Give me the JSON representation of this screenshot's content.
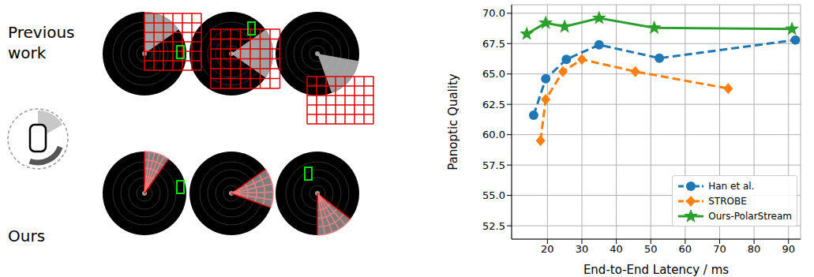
{
  "chart_data": {
    "type": "line",
    "xlabel": "End-to-End Latency / ms",
    "ylabel": "Panoptic Quality",
    "xlim": [
      9.6,
      93.5
    ],
    "ylim": [
      51.4,
      70.7
    ],
    "xticks": [
      20,
      30,
      40,
      50,
      60,
      70,
      80,
      90
    ],
    "yticks": [
      52.5,
      {
        "value": 55,
        "label": "55.0"
      },
      57.5,
      {
        "value": 60,
        "label": "60.0"
      },
      62.5,
      {
        "value": 65,
        "label": "65.0"
      },
      67.5,
      {
        "value": 70,
        "label": "70.0"
      }
    ],
    "grid": true,
    "legend": "lower right",
    "series": [
      {
        "name": "Han et al.",
        "color": "#1f77b4",
        "marker": "circle",
        "line_style": "dashed",
        "x": [
          16,
          19.5,
          25.5,
          35,
          52.5,
          92
        ],
        "values": [
          61.6,
          64.6,
          66.2,
          67.4,
          66.3,
          67.8
        ]
      },
      {
        "name": "STROBE",
        "color": "#ff7f0e",
        "marker": "diamond",
        "line_style": "dashed",
        "x": [
          18,
          19.5,
          24.5,
          30,
          45.5,
          72.5
        ],
        "values": [
          59.5,
          62.9,
          65.2,
          66.2,
          65.2,
          63.8
        ]
      },
      {
        "name": "Ours-PolarStream",
        "color": "#2ca02c",
        "marker": "star",
        "line_style": "solid",
        "x": [
          14,
          19.5,
          25,
          35,
          51,
          91
        ],
        "values": [
          68.3,
          69.2,
          68.9,
          69.6,
          68.8,
          68.7
        ]
      }
    ]
  },
  "diagram": {
    "rows": [
      {
        "label": "Previous work"
      },
      {
        "label": "Ours"
      }
    ]
  }
}
